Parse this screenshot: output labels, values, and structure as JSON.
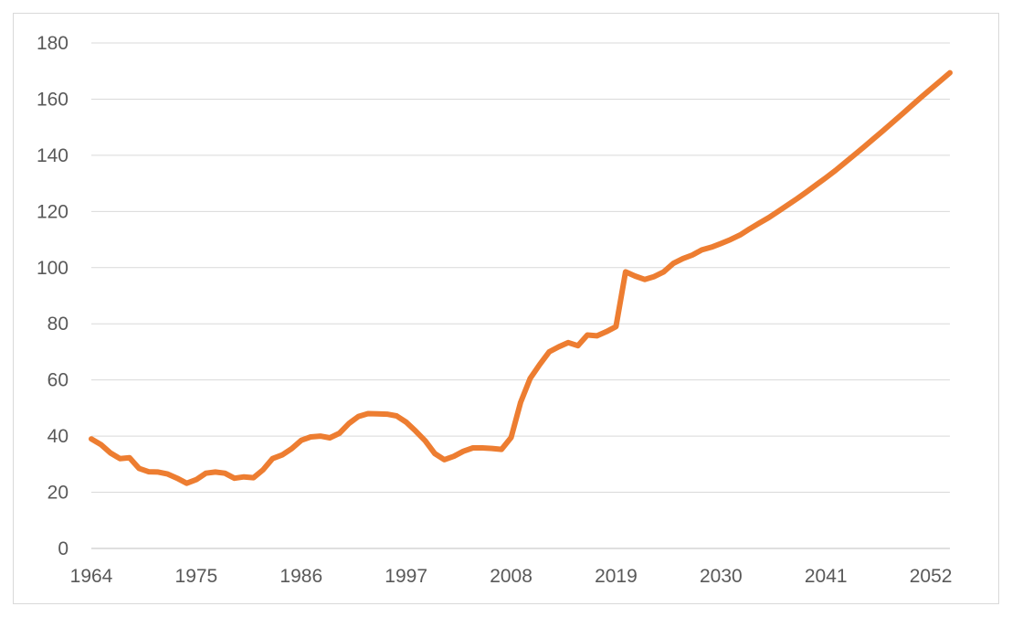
{
  "chart_data": {
    "type": "line",
    "title": "",
    "xlabel": "",
    "ylabel": "",
    "xlim": [
      1964,
      2054
    ],
    "ylim": [
      0,
      180
    ],
    "y_ticks": [
      0,
      20,
      40,
      60,
      80,
      100,
      120,
      140,
      160,
      180
    ],
    "x_ticks": [
      1964,
      1975,
      1986,
      1997,
      2008,
      2019,
      2030,
      2041,
      2052
    ],
    "grid": "horizontal",
    "legend": "none",
    "colors": {
      "line": "#ED7D31",
      "grid": "#d9d9d9",
      "axis": "#bfbfbf",
      "text": "#595959"
    },
    "series": [
      {
        "x": [
          1964,
          1965,
          1966,
          1967,
          1968,
          1969,
          1970,
          1971,
          1972,
          1973,
          1974,
          1975,
          1976,
          1977,
          1978,
          1979,
          1980,
          1981,
          1982,
          1983,
          1984,
          1985,
          1986,
          1987,
          1988,
          1989,
          1990,
          1991,
          1992,
          1993,
          1994,
          1995,
          1996,
          1997,
          1998,
          1999,
          2000,
          2001,
          2002,
          2003,
          2004,
          2005,
          2006,
          2007,
          2008,
          2009,
          2010,
          2011,
          2012,
          2013,
          2014,
          2015,
          2016,
          2017,
          2018,
          2019,
          2020,
          2021,
          2022,
          2023,
          2024,
          2025,
          2026,
          2027,
          2028,
          2029,
          2030,
          2031,
          2032,
          2033,
          2034,
          2035,
          2036,
          2037,
          2038,
          2039,
          2040,
          2041,
          2042,
          2043,
          2044,
          2045,
          2046,
          2047,
          2048,
          2049,
          2050,
          2051,
          2052,
          2053,
          2054
        ],
        "values": [
          39,
          37,
          34,
          32,
          32.3,
          28.5,
          27.3,
          27.2,
          26.5,
          25,
          23.2,
          24.5,
          26.8,
          27.2,
          26.8,
          25,
          25.5,
          25.2,
          28,
          32,
          33.3,
          35.5,
          38.5,
          39.7,
          40,
          39.4,
          41,
          44.5,
          47,
          48,
          47.9,
          47.8,
          47.2,
          45,
          41.8,
          38.3,
          33.8,
          31.6,
          32.8,
          34.6,
          35.8,
          35.8,
          35.6,
          35.3,
          39.5,
          52,
          60.5,
          65.5,
          70,
          71.8,
          73.3,
          72.2,
          76,
          75.7,
          77.2,
          79,
          98.5,
          97,
          95.8,
          96.8,
          98.5,
          101.5,
          103.2,
          104.5,
          106.3,
          107.3,
          108.6,
          110,
          111.6,
          113.8,
          115.8,
          117.8,
          120,
          122.3,
          124.6,
          127,
          129.5,
          132,
          134.6,
          137.4,
          140.2,
          143,
          145.9,
          148.8,
          151.7,
          154.7,
          157.7,
          160.7,
          163.6,
          166.5,
          169.4
        ]
      }
    ]
  }
}
